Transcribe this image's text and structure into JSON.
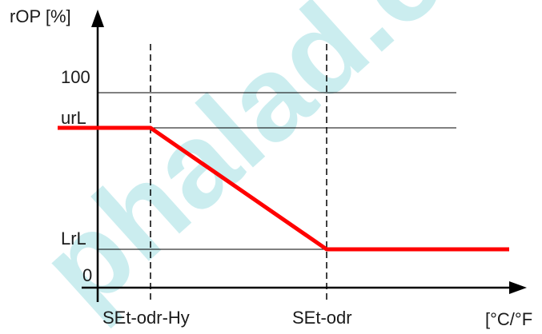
{
  "diagram": {
    "y_axis_label": "rOP [%]",
    "x_axis_label": "[°C/°F",
    "level_labels": {
      "hundred": "100",
      "upper": "urL",
      "lower": "LrL",
      "zero": "0"
    },
    "x_markers": {
      "left": "SEt-odr-Hy",
      "right": "SEt-odr"
    },
    "curve_color": "#ff0000",
    "axis_color": "#000000"
  },
  "watermark": {
    "text": "phalad.co",
    "color": "#bfe9ec"
  }
}
